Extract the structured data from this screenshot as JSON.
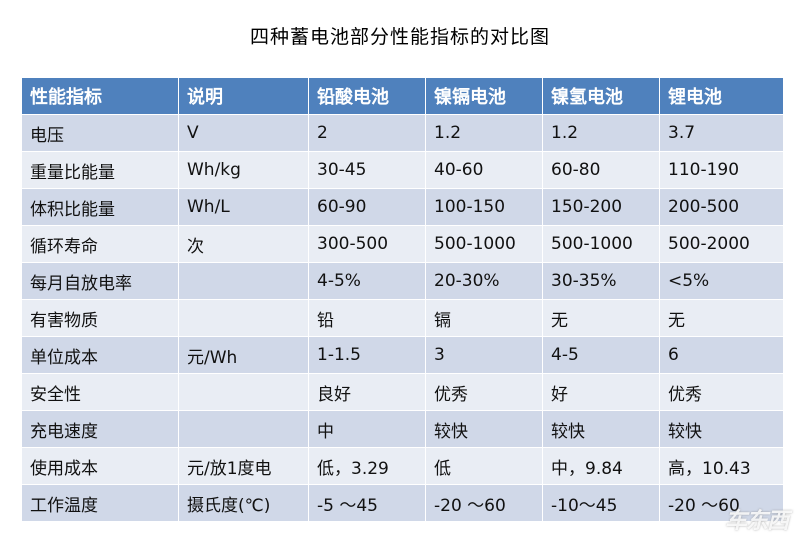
{
  "title": "四种蓄电池部分性能指标的对比图",
  "table": {
    "headers": [
      "性能指标",
      "说明",
      "铅酸电池",
      "镍镉电池",
      "镍氢电池",
      "锂电池"
    ],
    "rows": [
      [
        "电压",
        "V",
        "2",
        "1.2",
        "1.2",
        "3.7"
      ],
      [
        "重量比能量",
        "Wh/kg",
        "30-45",
        "40-60",
        "60-80",
        "110-190"
      ],
      [
        "体积比能量",
        "Wh/L",
        "60-90",
        "100-150",
        "150-200",
        "200-500"
      ],
      [
        "循环寿命",
        "次",
        "300-500",
        "500-1000",
        "500-1000",
        "500-2000"
      ],
      [
        "每月自放电率",
        "",
        "4-5%",
        "20-30%",
        "30-35%",
        "<5%"
      ],
      [
        "有害物质",
        "",
        "铅",
        "镉",
        "无",
        "无"
      ],
      [
        "单位成本",
        "元/Wh",
        "1-1.5",
        "3",
        "4-5",
        "6"
      ],
      [
        "安全性",
        "",
        "良好",
        "优秀",
        "好",
        "优秀"
      ],
      [
        "充电速度",
        "",
        "中",
        "较快",
        "较快",
        "较快"
      ],
      [
        "使用成本",
        "元/放1度电",
        "低，3.29",
        "低",
        "中，9.84",
        "高，10.43"
      ],
      [
        "工作温度",
        "摄氏度(℃)",
        "-5 ～45",
        "-20 ～60",
        "-10～45",
        "-20 ～60"
      ]
    ]
  },
  "watermark": "车东西"
}
